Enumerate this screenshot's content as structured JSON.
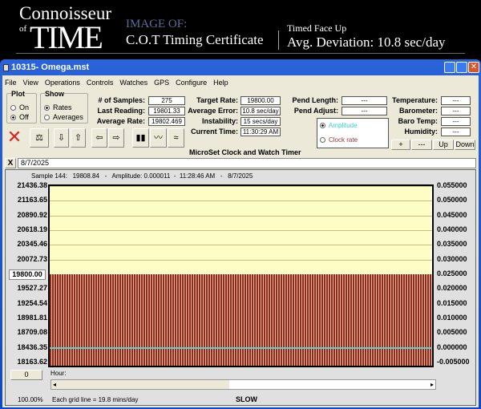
{
  "banner": {
    "logo_top": "Connoisseur",
    "logo_of": "of",
    "logo_main": "TIME",
    "image_of": "IMAGE OF:",
    "certificate": "C.O.T Timing Certificate",
    "position": "Timed Face Up",
    "avg_deviation": "Avg. Deviation: 10.8 sec/day"
  },
  "window": {
    "title": "10315- Omega.mst"
  },
  "menu": [
    "File",
    "View",
    "Operations",
    "Controls",
    "Watches",
    "GPS",
    "Configure",
    "Help"
  ],
  "plot_group": {
    "label": "Plot",
    "options": [
      "On",
      "Off"
    ],
    "selected": "Off"
  },
  "show_group": {
    "label": "Show",
    "options": [
      "Rates",
      "Averages"
    ],
    "selected": "Rates"
  },
  "stats": [
    {
      "label": "# of Samples:",
      "value": "275"
    },
    {
      "label": "Last Reading:",
      "value": "19801.33"
    },
    {
      "label": "Average Rate:",
      "value": "19802.469"
    }
  ],
  "rates": [
    {
      "label": "Target Rate:",
      "value": "19800.00"
    },
    {
      "label": "Average Error:",
      "value": "10.8 sec/day"
    },
    {
      "label": "Instability:",
      "value": "15 secs/day"
    },
    {
      "label": "Current Time:",
      "value": "11:30:29 AM"
    }
  ],
  "app_name": "MicroSet Clock and Watch Timer",
  "pend": [
    {
      "label": "Pend Length:",
      "value": "---"
    },
    {
      "label": "Pend Adjust:",
      "value": "---"
    }
  ],
  "mode": {
    "options": [
      "Amplitude",
      "Clock rate"
    ],
    "selected": "Amplitude",
    "amplitude_color": "#33cccc",
    "clockrate_color": "#993333"
  },
  "env": [
    {
      "label": "Temperature:",
      "value": "---"
    },
    {
      "label": "Barometer:",
      "value": "---"
    },
    {
      "label": "Baro Temp:",
      "value": "---"
    },
    {
      "label": "Humidity:",
      "value": "---"
    }
  ],
  "adjust_buttons": [
    "+",
    "---",
    "Up",
    "Down"
  ],
  "date_field": {
    "close": "X",
    "value": "8/7/2025"
  },
  "chart_data": {
    "type": "bar",
    "header": "Sample 144:   19808.84   -   Amplitude: 0.000011  -  11:28:46 AM   -   8/7/2025",
    "left_ticks": [
      "21436.38",
      "21163.65",
      "20890.92",
      "20618.19",
      "20345.46",
      "20072.73",
      "19800.00",
      "19527.27",
      "19254.54",
      "18981.81",
      "18709.08",
      "18436.35",
      "18163.62"
    ],
    "right_ticks": [
      "0.055000",
      "0.050000",
      "0.045000",
      "0.040000",
      "0.035000",
      "0.030000",
      "0.025000",
      "0.020000",
      "0.015000",
      "0.010000",
      "0.005000",
      "0.000000",
      "-0.005000"
    ],
    "ylim_left": [
      18163.62,
      21436.38
    ],
    "ylim_right": [
      -0.005,
      0.055
    ],
    "rate_value_approx": 19802.5,
    "amplitude_value_approx": 1.1e-05,
    "bar_color": "#8e2a1a",
    "amplitude_line_color": "#5fd0d0",
    "background": "#fdfdc8",
    "grid": true
  },
  "hour": {
    "value": "0",
    "label": "Hour:"
  },
  "status": {
    "zoom": "100.00%",
    "grid_note": "Each grid line = 19.8 mins/day",
    "direction": "SLOW"
  }
}
